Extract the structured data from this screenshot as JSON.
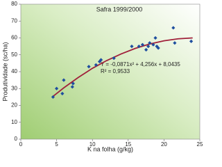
{
  "chart_data": {
    "type": "scatter",
    "title": "Safra 1999/2000",
    "x_label": "K na folha (g/kg)",
    "y_label": "Produtividade (sc/ha)",
    "annotations": [
      "Y = -0,0871x² + 4,256x + 8,0435",
      "R² = 0,9533"
    ],
    "series": [
      {
        "color": "#1f4f9f",
        "x": [
          4.5,
          5,
          5.8,
          6,
          7.2,
          7.3,
          9.5,
          10.5,
          11,
          11.2,
          13,
          15.5,
          16.5,
          17,
          17.5,
          17.8,
          18,
          18.5,
          18.8,
          19,
          19.2,
          21.3,
          21.5,
          23.8
        ],
        "values": [
          25,
          30,
          27,
          35,
          31,
          33,
          43,
          44,
          46,
          47,
          48,
          55,
          55,
          56,
          53,
          55,
          57,
          56,
          60,
          55,
          54,
          66,
          57,
          58
        ]
      }
    ],
    "trend": {
      "color": "#a0203a",
      "x": [
        4.5,
        6,
        8,
        10,
        12,
        14,
        16,
        18,
        20,
        22,
        24
      ],
      "values": [
        25.4,
        30.4,
        36.5,
        42.0,
        46.6,
        50.5,
        53.8,
        56.4,
        58.3,
        59.5,
        60.0
      ]
    },
    "xlim": [
      0,
      25
    ],
    "xticks": [
      0,
      5,
      10,
      15,
      20,
      25
    ],
    "ylim": [
      0,
      80
    ],
    "yticks": [
      0,
      10,
      20,
      30,
      40,
      50,
      60,
      70,
      80
    ]
  }
}
